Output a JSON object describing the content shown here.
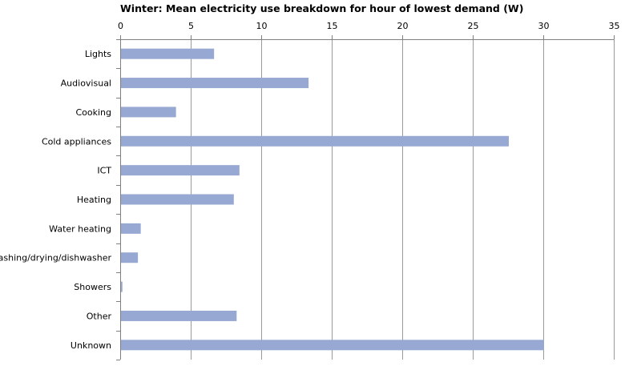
{
  "chart_data": {
    "type": "bar",
    "orientation": "horizontal",
    "title": "Winter: Mean electricity use breakdown for hour of lowest demand (W)",
    "xlabel": "",
    "ylabel": "",
    "x_axis_position": "top",
    "xlim": [
      0,
      35
    ],
    "x_ticks": [
      0,
      5,
      10,
      15,
      20,
      25,
      30,
      35
    ],
    "grid": "vertical major gridlines",
    "legend": "none",
    "bar_color": "#97A9D2",
    "categories": [
      "Lights",
      "Audiovisual",
      "Cooking",
      "Cold appliances",
      "ICT",
      "Heating",
      "Water heating",
      "Washing/drying/dishwasher",
      "Showers",
      "Other",
      "Unknown"
    ],
    "values": [
      6.6,
      13.3,
      3.9,
      27.5,
      8.4,
      8.0,
      1.4,
      1.2,
      0.1,
      8.2,
      30.0
    ]
  }
}
